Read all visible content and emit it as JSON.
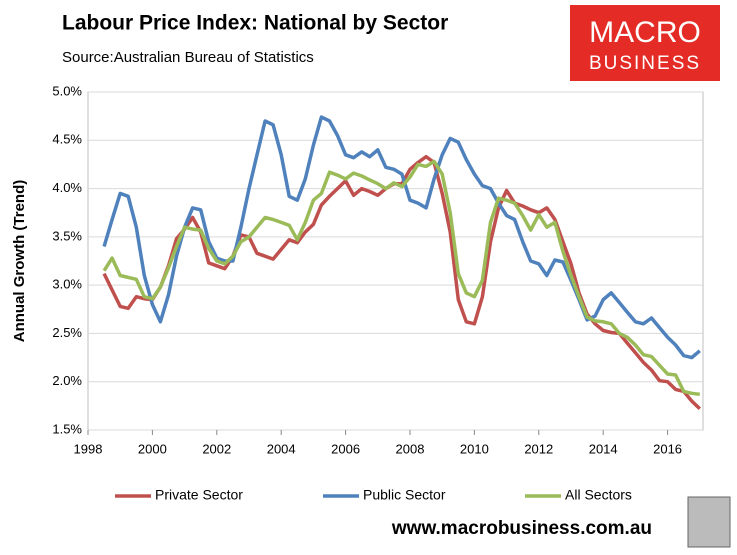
{
  "chart_data": {
    "type": "line",
    "title": "Labour Price Index: National by Sector",
    "subtitle": "Source:Australian Bureau of Statistics",
    "y_label": "Annual Growth (Trend)",
    "logo": [
      "MACRO",
      "BUSINESS"
    ],
    "footer": "www.macrobusiness.com.au",
    "xlim": [
      1998,
      2017.1
    ],
    "xticks": [
      1998,
      2000,
      2002,
      2004,
      2006,
      2008,
      2010,
      2012,
      2014,
      2016
    ],
    "ylim": [
      1.5,
      5.0
    ],
    "yticks": [
      {
        "value": 1.5,
        "label": "1.5%"
      },
      {
        "value": 2.0,
        "label": "2.0%"
      },
      {
        "value": 2.5,
        "label": "2.5%"
      },
      {
        "value": 3.0,
        "label": "3.0%"
      },
      {
        "value": 3.5,
        "label": "3.5%"
      },
      {
        "value": 4.0,
        "label": "4.0%"
      },
      {
        "value": 4.5,
        "label": "4.5%"
      },
      {
        "value": 5.0,
        "label": "5.0%"
      }
    ],
    "grid": true,
    "legend": "bottom",
    "x": [
      1998.5,
      1998.75,
      1999,
      1999.25,
      1999.5,
      1999.75,
      2000,
      2000.25,
      2000.5,
      2000.75,
      2001,
      2001.25,
      2001.5,
      2001.75,
      2002,
      2002.25,
      2002.5,
      2002.75,
      2003,
      2003.25,
      2003.5,
      2003.75,
      2004,
      2004.25,
      2004.5,
      2004.75,
      2005,
      2005.25,
      2005.5,
      2005.75,
      2006,
      2006.25,
      2006.5,
      2006.75,
      2007,
      2007.25,
      2007.5,
      2007.75,
      2008,
      2008.25,
      2008.5,
      2008.75,
      2009,
      2009.25,
      2009.5,
      2009.75,
      2010,
      2010.25,
      2010.5,
      2010.75,
      2011,
      2011.25,
      2011.5,
      2011.75,
      2012,
      2012.25,
      2012.5,
      2012.75,
      2013,
      2013.25,
      2013.5,
      2013.75,
      2014,
      2014.25,
      2014.5,
      2014.75,
      2015,
      2015.25,
      2015.5,
      2015.75,
      2016,
      2016.25,
      2016.5,
      2016.75,
      2017
    ],
    "series": [
      {
        "name": "Private Sector",
        "color": "#c0504d",
        "values": [
          3.12,
          2.95,
          2.78,
          2.76,
          2.88,
          2.86,
          2.85,
          2.98,
          3.2,
          3.48,
          3.58,
          3.7,
          3.55,
          3.23,
          3.2,
          3.17,
          3.3,
          3.52,
          3.5,
          3.33,
          3.3,
          3.27,
          3.37,
          3.47,
          3.44,
          3.55,
          3.63,
          3.83,
          3.92,
          4.0,
          4.08,
          3.93,
          4.0,
          3.97,
          3.93,
          4.0,
          4.05,
          4.05,
          4.2,
          4.27,
          4.33,
          4.27,
          3.95,
          3.55,
          2.85,
          2.62,
          2.6,
          2.88,
          3.45,
          3.8,
          3.98,
          3.85,
          3.82,
          3.78,
          3.75,
          3.8,
          3.68,
          3.45,
          3.22,
          2.92,
          2.7,
          2.6,
          2.53,
          2.51,
          2.5,
          2.4,
          2.3,
          2.2,
          2.12,
          2.01,
          2.0,
          1.92,
          1.9,
          1.8,
          1.72
        ]
      },
      {
        "name": "Public Sector",
        "color": "#4f81bd",
        "values": [
          3.4,
          3.68,
          3.95,
          3.92,
          3.6,
          3.1,
          2.8,
          2.62,
          2.9,
          3.3,
          3.6,
          3.8,
          3.78,
          3.45,
          3.28,
          3.25,
          3.25,
          3.6,
          4.0,
          4.35,
          4.7,
          4.66,
          4.35,
          3.92,
          3.88,
          4.1,
          4.45,
          4.74,
          4.7,
          4.55,
          4.35,
          4.32,
          4.38,
          4.33,
          4.4,
          4.22,
          4.2,
          4.15,
          3.88,
          3.85,
          3.8,
          4.1,
          4.35,
          4.52,
          4.48,
          4.3,
          4.15,
          4.03,
          4.0,
          3.85,
          3.72,
          3.68,
          3.45,
          3.25,
          3.22,
          3.1,
          3.26,
          3.24,
          3.05,
          2.85,
          2.64,
          2.68,
          2.85,
          2.92,
          2.82,
          2.72,
          2.62,
          2.6,
          2.66,
          2.56,
          2.46,
          2.38,
          2.27,
          2.25,
          2.32
        ]
      },
      {
        "name": "All Sectors",
        "color": "#9bbb59",
        "values": [
          3.15,
          3.28,
          3.1,
          3.08,
          3.06,
          2.88,
          2.86,
          2.98,
          3.18,
          3.4,
          3.6,
          3.58,
          3.57,
          3.38,
          3.25,
          3.22,
          3.3,
          3.45,
          3.5,
          3.6,
          3.7,
          3.68,
          3.65,
          3.62,
          3.47,
          3.65,
          3.88,
          3.95,
          4.17,
          4.14,
          4.1,
          4.16,
          4.13,
          4.09,
          4.05,
          4.0,
          4.06,
          4.02,
          4.12,
          4.25,
          4.23,
          4.28,
          4.15,
          3.75,
          3.12,
          2.92,
          2.88,
          3.05,
          3.65,
          3.9,
          3.88,
          3.85,
          3.72,
          3.57,
          3.73,
          3.6,
          3.65,
          3.35,
          3.1,
          2.88,
          2.67,
          2.63,
          2.62,
          2.6,
          2.5,
          2.46,
          2.38,
          2.28,
          2.26,
          2.17,
          2.08,
          2.07,
          1.9,
          1.88,
          1.87
        ]
      }
    ]
  }
}
